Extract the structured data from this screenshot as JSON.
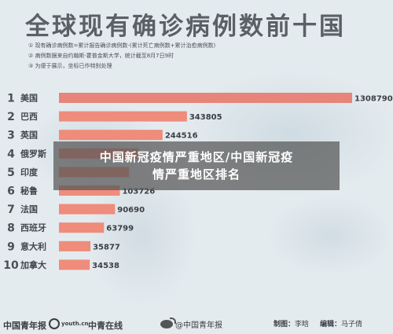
{
  "title": "全球现有确诊病例数前十国",
  "notes": [
    "① 现有确诊病例数=累计报告确诊病例数-(累计死亡病例数+累计治愈病例数)",
    "② 病例数据来自约翰斯·霍普金斯大学，统计截至8月7日9时",
    "③ 为便于展示，坐标已作特别处理"
  ],
  "banner": {
    "line1": "中国新冠疫情严重地区/中国新冠疫",
    "line2": "情严重地区排名"
  },
  "footer": {
    "logo1": "中国青年报",
    "logo2": "youth.cn",
    "logo3": "中青在线",
    "weibo": "@中国青年报",
    "producer_label": "制图：",
    "producer": "李晗",
    "editor_label": "编辑：",
    "editor": "马子倩"
  },
  "colors": {
    "bar": "#ef8c7b",
    "bar_top": "#e7857a",
    "rank": "#4b4f55",
    "country": "#44484e",
    "value": "#3b3f45"
  },
  "chart_data": {
    "type": "bar",
    "orientation": "horizontal",
    "categories": [
      "美国",
      "巴西",
      "英国",
      "俄罗斯",
      "印度",
      "秘鲁",
      "法国",
      "西班牙",
      "意大利",
      "加拿大"
    ],
    "ranks": [
      "1",
      "2",
      "3",
      "4",
      "5",
      "6",
      "7",
      "8",
      "9",
      "10"
    ],
    "values": [
      1308790,
      343805,
      244516,
      160000,
      130000,
      103726,
      90690,
      63799,
      35877,
      34538
    ],
    "value_labels": [
      "1308790",
      "343805",
      "244516",
      "",
      "",
      "103726",
      "90690",
      "63799",
      "35877",
      "34538"
    ]
  }
}
